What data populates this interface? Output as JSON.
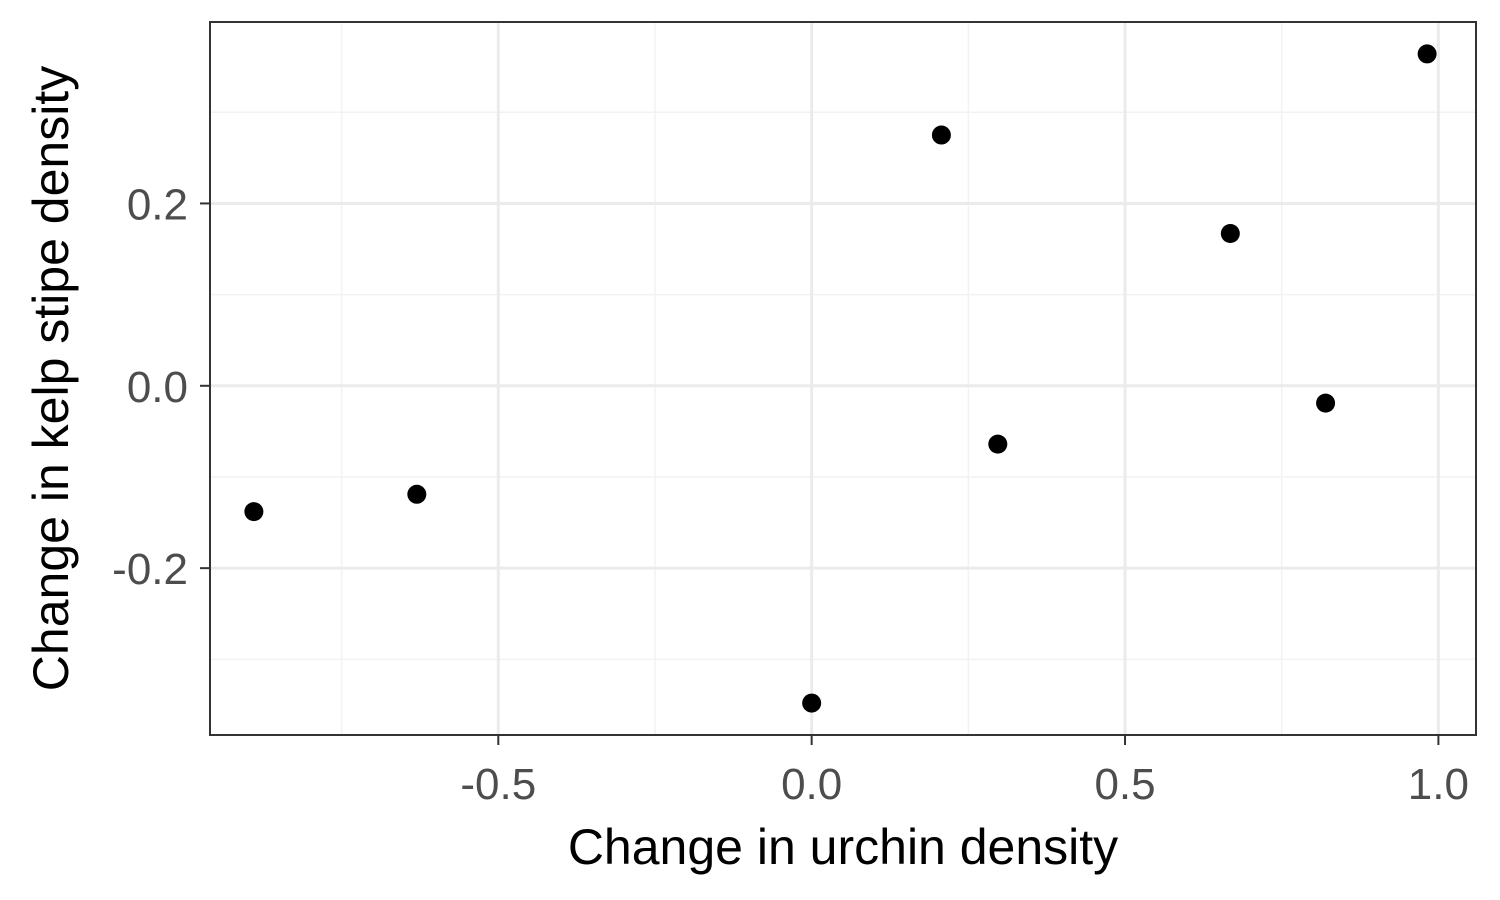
{
  "chart_data": {
    "type": "scatter",
    "title": "",
    "xlabel": "Change in urchin density",
    "ylabel": "Change in kelp stipe density",
    "xlim": [
      -0.96,
      1.06
    ],
    "ylim": [
      -0.383,
      0.399
    ],
    "x_ticks": [
      {
        "value": -0.5,
        "label": "-0.5"
      },
      {
        "value": 0.0,
        "label": "0.0"
      },
      {
        "value": 0.5,
        "label": "0.5"
      },
      {
        "value": 1.0,
        "label": "1.0"
      }
    ],
    "y_ticks": [
      {
        "value": -0.2,
        "label": "-0.2"
      },
      {
        "value": 0.0,
        "label": "0.0"
      },
      {
        "value": 0.2,
        "label": "0.2"
      }
    ],
    "x_minor": [
      -0.75,
      -0.25,
      0.25,
      0.75
    ],
    "y_minor": [
      -0.3,
      -0.1,
      0.1,
      0.3
    ],
    "grid": true,
    "points": [
      {
        "x": -0.89,
        "y": -0.138
      },
      {
        "x": -0.63,
        "y": -0.119
      },
      {
        "x": 0.0,
        "y": -0.348
      },
      {
        "x": 0.207,
        "y": 0.275
      },
      {
        "x": 0.297,
        "y": -0.064
      },
      {
        "x": 0.668,
        "y": 0.167
      },
      {
        "x": 0.82,
        "y": -0.019
      },
      {
        "x": 0.982,
        "y": 0.364
      }
    ],
    "colors": {
      "point": "#000000",
      "grid_major": "#ebebeb",
      "grid_minor": "#f2f2f2",
      "panel_border": "#333333",
      "tick_label": "#4d4d4d"
    }
  }
}
